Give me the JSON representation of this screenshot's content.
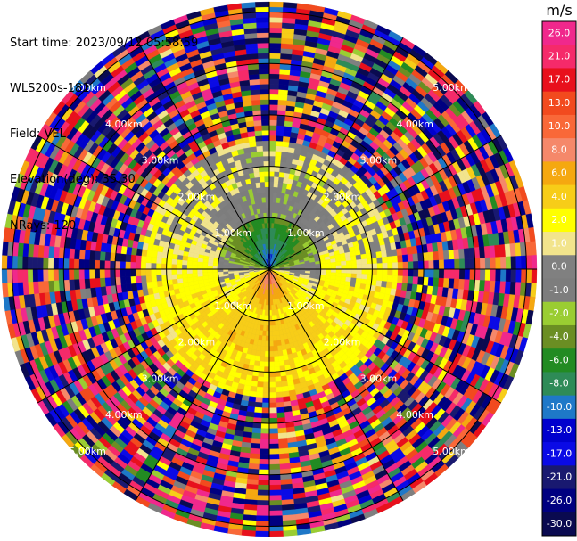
{
  "header": {
    "start_time": "Start time: 2023/09/12 05:58:59",
    "instrument": "WLS200s-181",
    "field": "Field: VEL",
    "elevation": "Elevation(deg): 35.30",
    "nrays": "NRays: 120"
  },
  "colors": {
    "background": "#ffffff",
    "grid": "#000000"
  },
  "chart_data": {
    "type": "heatmap",
    "projection": "polar-ppi",
    "field": "VEL",
    "units": "m/s",
    "n_rays": 120,
    "range_rings": [
      {
        "range_km": 1,
        "label": "1.00km"
      },
      {
        "range_km": 2,
        "label": "2.00km"
      },
      {
        "range_km": 3,
        "label": "3.00km"
      },
      {
        "range_km": 4,
        "label": "4.00km"
      },
      {
        "range_km": 5,
        "label": "5.00km"
      }
    ],
    "max_range_km": 5.2,
    "colorbar": {
      "unit_label": "m/s",
      "bins": [
        {
          "label": "26.0",
          "color": "#f0288c"
        },
        {
          "label": "21.0",
          "color": "#f52a6a"
        },
        {
          "label": "17.0",
          "color": "#e8101c"
        },
        {
          "label": "13.0",
          "color": "#f24a1e"
        },
        {
          "label": "10.0",
          "color": "#f96838"
        },
        {
          "label": "8.0",
          "color": "#f5886a"
        },
        {
          "label": "6.0",
          "color": "#f5a810"
        },
        {
          "label": "4.0",
          "color": "#f7cd18"
        },
        {
          "label": "2.0",
          "color": "#ffff00"
        },
        {
          "label": "1.0",
          "color": "#f2e48c"
        },
        {
          "label": "0.0",
          "color": "#808080"
        },
        {
          "label": "-1.0",
          "color": "#7d7d7d"
        },
        {
          "label": "-2.0",
          "color": "#9acd32"
        },
        {
          "label": "-4.0",
          "color": "#6b8e23"
        },
        {
          "label": "-6.0",
          "color": "#228b22"
        },
        {
          "label": "-8.0",
          "color": "#2e8b57"
        },
        {
          "label": "-10.0",
          "color": "#1e78c8"
        },
        {
          "label": "-13.0",
          "color": "#0000cd"
        },
        {
          "label": "-17.0",
          "color": "#0a0ae6"
        },
        {
          "label": "-21.0",
          "color": "#191970"
        },
        {
          "label": "-26.0",
          "color": "#000080"
        },
        {
          "label": "-30.0",
          "color": "#0a0a50"
        }
      ]
    }
  }
}
